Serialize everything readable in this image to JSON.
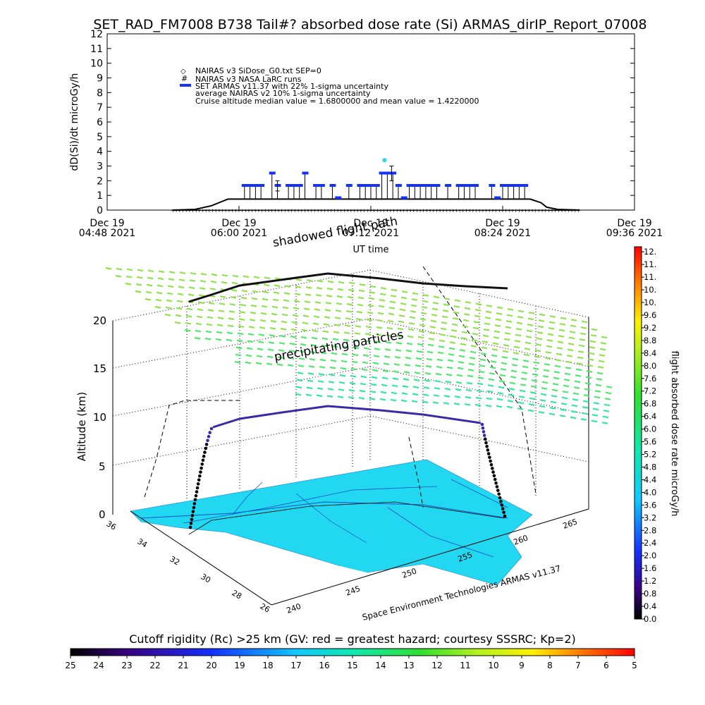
{
  "title": "SET_RAD_FM7008  B738 Tail#? absorbed dose rate (Si) ARMAS_dirIP_Report_07008",
  "chart_data": [
    {
      "type": "scatter",
      "ylabel": "dD(Si)/dt microGy/h",
      "xlabel": "UT time",
      "ylim": [
        0,
        12
      ],
      "yticks": [
        "0",
        "1",
        "2",
        "3",
        "4",
        "5",
        "6",
        "7",
        "8",
        "9",
        "10",
        "11",
        "12"
      ],
      "xticks": [
        {
          "date": "Dec 19",
          "time": "04:48 2021"
        },
        {
          "date": "Dec 19",
          "time": "06:00 2021"
        },
        {
          "date": "Dec 19",
          "time": "07:12 2021"
        },
        {
          "date": "Dec 19",
          "time": "08:24 2021"
        },
        {
          "date": "Dec 19",
          "time": "09:36 2021"
        }
      ],
      "xlim_hours": [
        4.8,
        9.6
      ],
      "legend": [
        "NAIRAS v3 SiDose_G0.txt SEP=0",
        "NAIRAS v3 NASA LaRC runs",
        "SET ARMAS v11.37 with 22% 1-sigma uncertainty",
        "average NAIRAS v2 10% 1-sigma uncertainty",
        "Cruise altitude median value = 1.6800000 and mean value = 1.4220000"
      ],
      "series": [
        {
          "name": "SET ARMAS v11.37 with 22% 1-sigma uncertainty",
          "color": "#1432ff",
          "x": [
            6.05,
            6.1,
            6.15,
            6.2,
            6.3,
            6.35,
            6.45,
            6.5,
            6.55,
            6.6,
            6.7,
            6.75,
            6.85,
            6.9,
            7.0,
            7.1,
            7.15,
            7.2,
            7.25,
            7.3,
            7.35,
            7.4,
            7.45,
            7.5,
            7.55,
            7.6,
            7.65,
            7.7,
            7.75,
            7.8,
            7.9,
            8.0,
            8.05,
            8.1,
            8.15,
            8.3,
            8.35,
            8.4,
            8.45,
            8.5,
            8.55,
            8.6
          ],
          "y": [
            1.68,
            1.68,
            1.68,
            1.68,
            2.52,
            1.68,
            1.68,
            1.68,
            1.68,
            2.52,
            1.68,
            1.68,
            1.68,
            0.84,
            1.68,
            1.68,
            1.68,
            1.68,
            1.68,
            2.52,
            2.52,
            2.52,
            1.68,
            0.84,
            1.68,
            1.68,
            1.68,
            1.68,
            1.68,
            1.68,
            1.68,
            1.68,
            1.68,
            1.68,
            1.68,
            1.68,
            0.84,
            1.68,
            1.68,
            1.68,
            1.68,
            1.68
          ]
        },
        {
          "name": "NAIRAS v3 SiDose_G0.txt SEP=0",
          "color": "#000000",
          "x": [
            5.4,
            5.6,
            5.75,
            5.85,
            5.9,
            6.0,
            6.5,
            7.0,
            7.5,
            8.0,
            8.5,
            8.65,
            8.75,
            8.8,
            8.9,
            9.1
          ],
          "y": [
            0.0,
            0.05,
            0.3,
            0.6,
            0.75,
            0.75,
            0.75,
            0.75,
            0.75,
            0.75,
            0.75,
            0.75,
            0.5,
            0.2,
            0.05,
            0.0
          ]
        }
      ]
    },
    {
      "type": "scatter",
      "title": "shadowed flight path",
      "annotation": "precipitating particles",
      "zlabel": "Altitude (km)",
      "zticks": [
        "0",
        "5",
        "10",
        "15",
        "20"
      ],
      "lat_ticks": [
        "36",
        "34",
        "32",
        "30",
        "28",
        "26"
      ],
      "lon_ticks": [
        "240",
        "245",
        "250",
        "255",
        "260",
        "265"
      ],
      "credit": "Space Environment Technologies ARMAS v11.37",
      "colorbar_label": "flight absorbed dose rate microGy/h",
      "colorbar_ticks": [
        "0.0",
        "0.4",
        "0.8",
        "1.2",
        "1.6",
        "2.0",
        "2.4",
        "2.8",
        "3.2",
        "3.6",
        "4.0",
        "4.4",
        "4.8",
        "5.2",
        "5.6",
        "6.0",
        "6.4",
        "6.8",
        "7.2",
        "7.6",
        "8.0",
        "8.4",
        "8.8",
        "9.2",
        "9.6",
        "10.",
        "10.",
        "11.",
        "11.",
        "12."
      ],
      "rigidity_label": "Cutoff rigidity (Rc) >25 km (GV: red = greatest hazard; courtesy SSSRC; Kp=2)",
      "rigidity_ticks": [
        "25",
        "24",
        "23",
        "22",
        "21",
        "20",
        "19",
        "18",
        "17",
        "16",
        "15",
        "14",
        "13",
        "12",
        "11",
        "10",
        "9",
        "8",
        "7",
        "6",
        "5"
      ]
    }
  ],
  "colors": {
    "armas_blue": "#1432ff",
    "cyan_map": "#22d8f0",
    "green_particles": "#78e040"
  }
}
